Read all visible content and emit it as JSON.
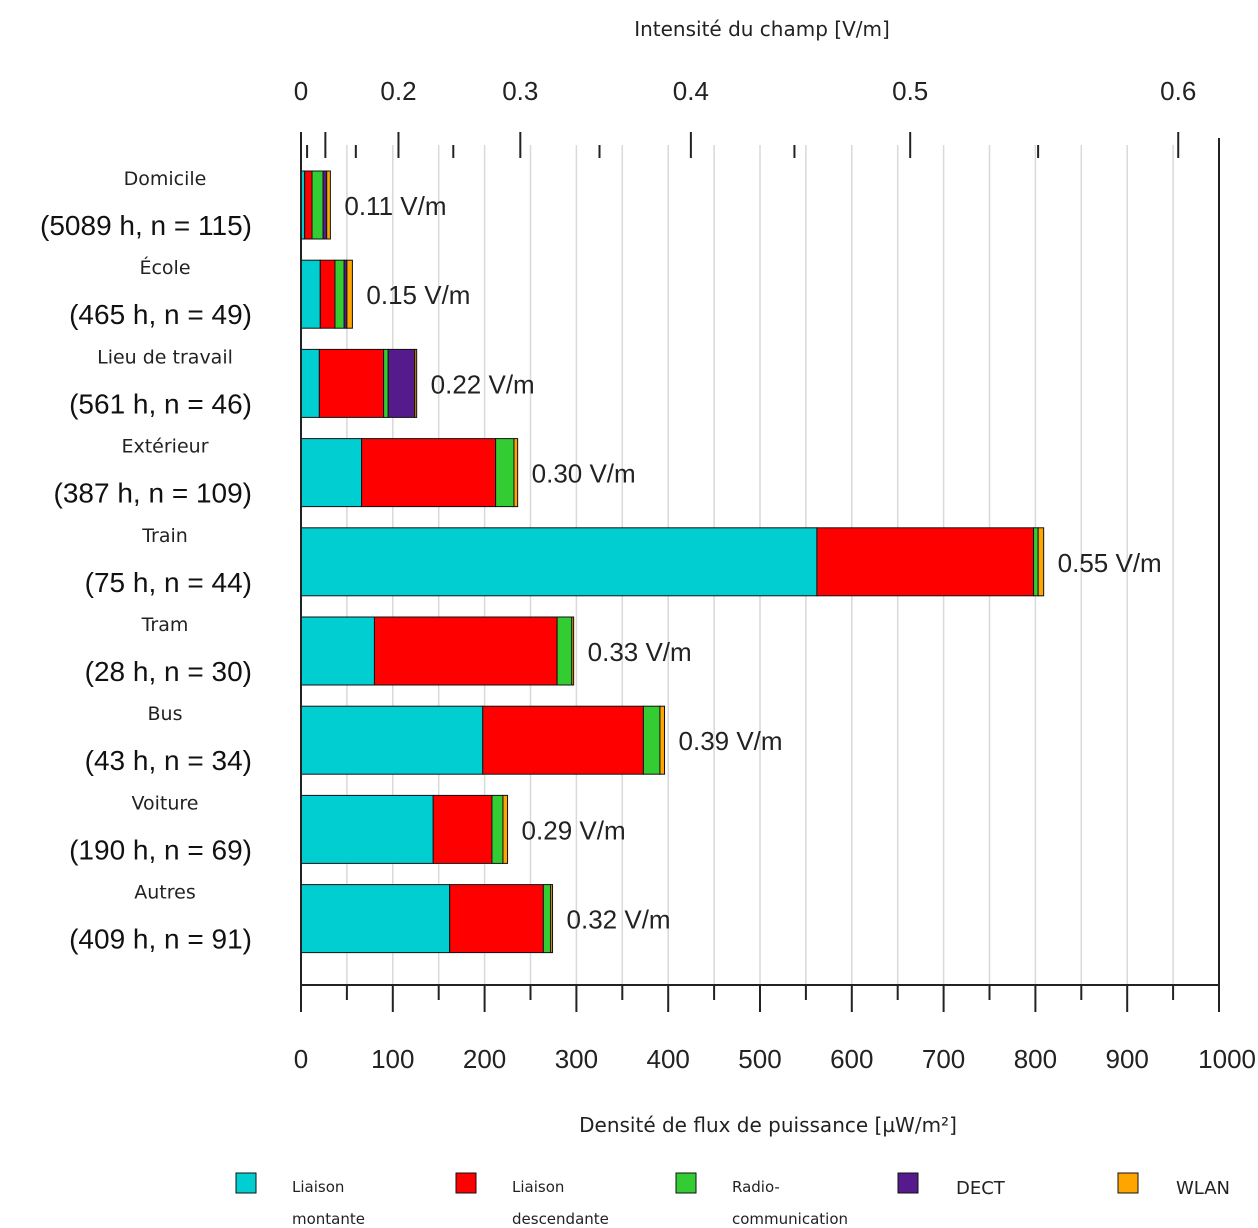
{
  "chart_data": {
    "type": "bar",
    "orientation": "horizontal",
    "stacked": true,
    "xlabel": "Densité de flux de puissance [µW/m²]",
    "x2label": "Intensité du champ [V/m]",
    "xlim": [
      0,
      1000
    ],
    "xticks": [
      "0",
      "100",
      "200",
      "300",
      "400",
      "500",
      "600",
      "700",
      "800",
      "900",
      "1000"
    ],
    "x2ticks": [
      {
        "label": "0",
        "value": 0
      },
      {
        "label": "0.2",
        "value": 0.2
      },
      {
        "label": "0.3",
        "value": 0.3
      },
      {
        "label": "0.4",
        "value": 0.4
      },
      {
        "label": "0.5",
        "value": 0.5
      },
      {
        "label": "0.6",
        "value": 0.6
      }
    ],
    "grid": true,
    "legend_position": "bottom",
    "categories": [
      {
        "name": "Domicile",
        "sub": "(5089 h, n = 115)",
        "annotation": "0.11 V/m"
      },
      {
        "name": "École",
        "sub": "(465 h, n = 49)",
        "annotation": "0.15 V/m"
      },
      {
        "name": "Lieu de travail",
        "sub": "(561 h, n = 46)",
        "annotation": "0.22 V/m"
      },
      {
        "name": "Extérieur",
        "sub": "(387 h, n = 109)",
        "annotation": "0.30 V/m"
      },
      {
        "name": "Train",
        "sub": "(75 h, n = 44)",
        "annotation": "0.55 V/m"
      },
      {
        "name": "Tram",
        "sub": "(28 h, n = 30)",
        "annotation": "0.33 V/m"
      },
      {
        "name": "Bus",
        "sub": "(43 h, n = 34)",
        "annotation": "0.39 V/m"
      },
      {
        "name": "Voiture",
        "sub": "(190 h, n = 69)",
        "annotation": "0.29 V/m"
      },
      {
        "name": "Autres",
        "sub": "(409 h, n = 91)",
        "annotation": "0.32 V/m"
      }
    ],
    "series": [
      {
        "name": "Liaison montante",
        "color": "#00CED1",
        "values": [
          4,
          21,
          20,
          66,
          562,
          80,
          198,
          144,
          162
        ]
      },
      {
        "name": "Liaison descendante",
        "color": "#FF0000",
        "values": [
          8,
          16,
          70,
          146,
          236,
          199,
          175,
          64,
          102
        ]
      },
      {
        "name": "Radio-communication",
        "color": "#33CC33",
        "values": [
          12,
          10,
          5,
          20,
          5,
          16,
          18,
          12,
          8
        ]
      },
      {
        "name": "DECT",
        "color": "#551A8B",
        "values": [
          4,
          3,
          29,
          0,
          0,
          0,
          0,
          0,
          0
        ]
      },
      {
        "name": "WLAN",
        "color": "#FFA500",
        "values": [
          4,
          6,
          2,
          4,
          6,
          2,
          5,
          5,
          2
        ]
      }
    ],
    "legend": [
      {
        "line1": "Liaison",
        "line2": "montante",
        "color": "#00CED1"
      },
      {
        "line1": "Liaison",
        "line2": "descendante",
        "color": "#FF0000"
      },
      {
        "line1": "Radio-",
        "line2": "communication",
        "color": "#33CC33"
      },
      {
        "line1": "DECT",
        "line2": "",
        "color": "#551A8B"
      },
      {
        "line1": "WLAN",
        "line2": "",
        "color": "#FFA500"
      }
    ]
  }
}
